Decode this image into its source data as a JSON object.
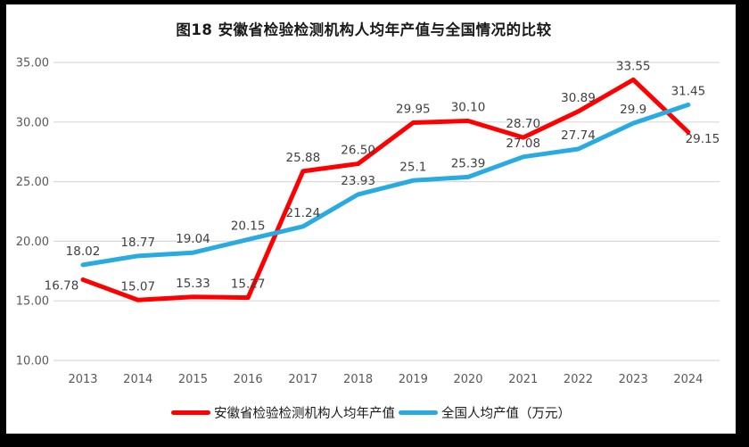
{
  "title": "图18 安徽省检验检测机构人均年产值与全国情况的比较",
  "chart_data": {
    "type": "line",
    "categories": [
      "2013",
      "2014",
      "2015",
      "2016",
      "2017",
      "2018",
      "2019",
      "2020",
      "2021",
      "2022",
      "2023",
      "2024"
    ],
    "series": [
      {
        "name": "安徽省检验检测机构人均年产值",
        "color": "#FF0000",
        "values": [
          16.78,
          15.07,
          15.33,
          15.27,
          25.88,
          26.5,
          29.95,
          30.1,
          28.7,
          30.89,
          33.55,
          29.15
        ],
        "labels": [
          "16.78",
          "15.07",
          "15.33",
          "15.27",
          "25.88",
          "26.50",
          "29.95",
          "30.10",
          "28.70",
          "30.89",
          "33.55",
          "29.15"
        ]
      },
      {
        "name": "全国人均产值（万元）",
        "color": "#29ABE2",
        "values": [
          18.02,
          18.77,
          19.04,
          20.15,
          21.24,
          23.93,
          25.1,
          25.39,
          27.08,
          27.74,
          29.9,
          31.45
        ],
        "labels": [
          "18.02",
          "18.77",
          "19.04",
          "20.15",
          "21.24",
          "23.93",
          "25.1",
          "25.39",
          "27.08",
          "27.74",
          "29.9",
          "31.45"
        ]
      }
    ],
    "ylim": [
      10,
      35
    ],
    "ytick_step": 5,
    "ytick_labels": [
      "10.00",
      "15.00",
      "20.00",
      "25.00",
      "30.00",
      "35.00"
    ],
    "grid": "horizontal",
    "legend_position": "bottom",
    "gridline_color": "#D9D9D9",
    "axis_label_color": "#595959",
    "data_label_color": "#404040"
  }
}
